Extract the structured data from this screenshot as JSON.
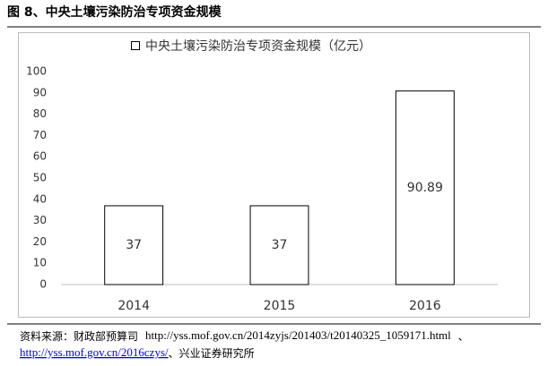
{
  "chart_data": {
    "type": "bar",
    "title": "图 8、中央土壤污染防治专项资金规模",
    "categories": [
      "2014",
      "2015",
      "2016"
    ],
    "series": [
      {
        "name": "中央土壤污染防治专项资金规模（亿元）",
        "color": "#ffffff",
        "values": [
          37,
          37,
          90.89
        ]
      }
    ],
    "ylim": [
      0,
      100
    ],
    "yticks": [
      0,
      10,
      20,
      30,
      40,
      50,
      60,
      70,
      80,
      90,
      100
    ],
    "grid": false,
    "legend": "top",
    "source": {
      "label": "资料来源：财政部预算司",
      "url1": "http://yss.mof.gov.cn/2014zyjs/201403/t20140325_1059171.html",
      "sep": "、",
      "url2": "http://yss.mof.gov.cn/2016czys/",
      "tail": "、兴业证券研究所"
    }
  }
}
